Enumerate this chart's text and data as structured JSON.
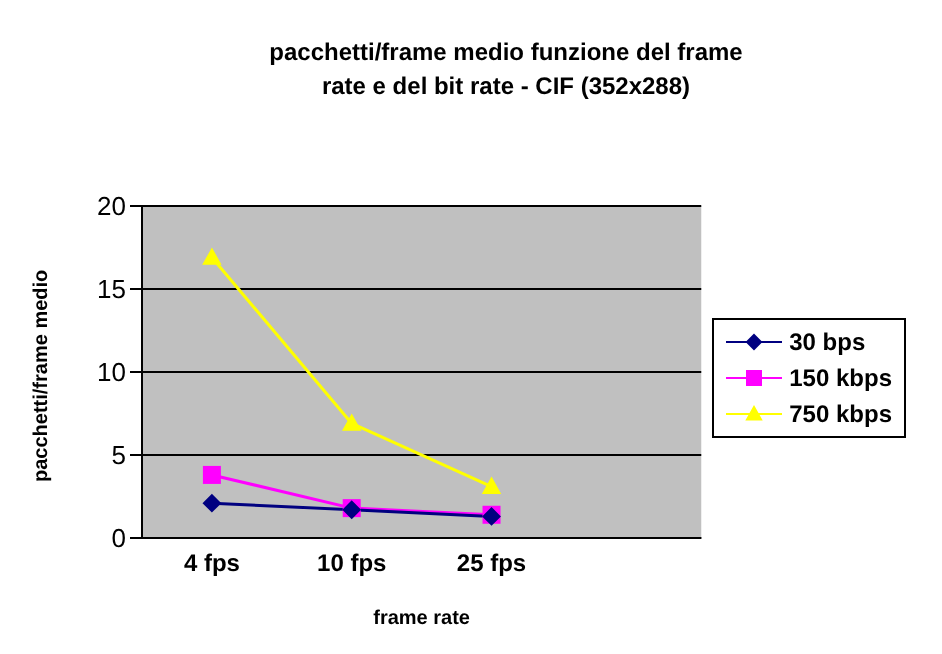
{
  "chart_data": {
    "type": "line",
    "title": "pacchetti/frame medio funzione del frame rate e del bit rate - CIF (352x288)",
    "xlabel": "frame rate",
    "ylabel": "pacchetti/frame medio",
    "categories": [
      "4 fps",
      "10 fps",
      "25 fps",
      null
    ],
    "ylim": [
      0,
      20
    ],
    "yticks": [
      0,
      5,
      10,
      15,
      20
    ],
    "grid": "y",
    "legend": "right",
    "series": [
      {
        "name": "30 bps",
        "color": "#000080",
        "marker": "diamond",
        "values": [
          2.1,
          1.7,
          1.3,
          null
        ]
      },
      {
        "name": "150 kbps",
        "color": "#ff00ff",
        "marker": "square",
        "values": [
          3.8,
          1.8,
          1.4,
          null
        ]
      },
      {
        "name": "750 kbps",
        "color": "#ffff00",
        "marker": "triangle",
        "values": [
          16.9,
          6.9,
          3.1,
          null
        ]
      }
    ]
  }
}
